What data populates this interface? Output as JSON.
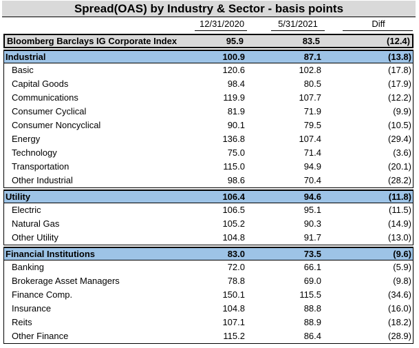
{
  "chart_data": {
    "type": "table",
    "title": "Spread(OAS) by Industry & Sector - basis points",
    "columns": [
      "12/31/2020",
      "5/31/2021",
      "Diff"
    ],
    "index": {
      "label": "Bloomberg Barclays IG Corporate Index",
      "v1": "95.9",
      "v2": "83.5",
      "diff": "(12.4)"
    },
    "sections": [
      {
        "label": "Industrial",
        "v1": "100.9",
        "v2": "87.1",
        "diff": "(13.8)",
        "rows": [
          {
            "label": "Basic",
            "v1": "120.6",
            "v2": "102.8",
            "diff": "(17.8)"
          },
          {
            "label": "Capital Goods",
            "v1": "98.4",
            "v2": "80.5",
            "diff": "(17.9)"
          },
          {
            "label": "Communications",
            "v1": "119.9",
            "v2": "107.7",
            "diff": "(12.2)"
          },
          {
            "label": "Consumer Cyclical",
            "v1": "81.9",
            "v2": "71.9",
            "diff": "(9.9)"
          },
          {
            "label": "Consumer Noncyclical",
            "v1": "90.1",
            "v2": "79.5",
            "diff": "(10.5)"
          },
          {
            "label": "Energy",
            "v1": "136.8",
            "v2": "107.4",
            "diff": "(29.4)"
          },
          {
            "label": "Technology",
            "v1": "75.0",
            "v2": "71.4",
            "diff": "(3.6)"
          },
          {
            "label": "Transportation",
            "v1": "115.0",
            "v2": "94.9",
            "diff": "(20.1)"
          },
          {
            "label": "Other Industrial",
            "v1": "98.6",
            "v2": "70.4",
            "diff": "(28.2)"
          }
        ]
      },
      {
        "label": "Utility",
        "v1": "106.4",
        "v2": "94.6",
        "diff": "(11.8)",
        "rows": [
          {
            "label": "Electric",
            "v1": "106.5",
            "v2": "95.1",
            "diff": "(11.5)"
          },
          {
            "label": "Natural Gas",
            "v1": "105.2",
            "v2": "90.3",
            "diff": "(14.9)"
          },
          {
            "label": "Other Utility",
            "v1": "104.8",
            "v2": "91.7",
            "diff": "(13.0)"
          }
        ]
      },
      {
        "label": "Financial Institutions",
        "v1": "83.0",
        "v2": "73.5",
        "diff": "(9.6)",
        "rows": [
          {
            "label": "Banking",
            "v1": "72.0",
            "v2": "66.1",
            "diff": "(5.9)"
          },
          {
            "label": "Brokerage Asset Managers",
            "v1": "78.8",
            "v2": "69.0",
            "diff": "(9.8)"
          },
          {
            "label": "Finance Comp.",
            "v1": "150.1",
            "v2": "115.5",
            "diff": "(34.6)"
          },
          {
            "label": "Insurance",
            "v1": "104.8",
            "v2": "88.8",
            "diff": "(16.0)"
          },
          {
            "label": "Reits",
            "v1": "107.1",
            "v2": "88.9",
            "diff": "(18.2)"
          },
          {
            "label": "Other Finance",
            "v1": "115.2",
            "v2": "86.4",
            "diff": "(28.9)"
          }
        ]
      }
    ]
  },
  "colors": {
    "title_bg": "#d9d9d9",
    "section_bg": "#9dc3e6",
    "index_bg": "#d9d9d9"
  }
}
